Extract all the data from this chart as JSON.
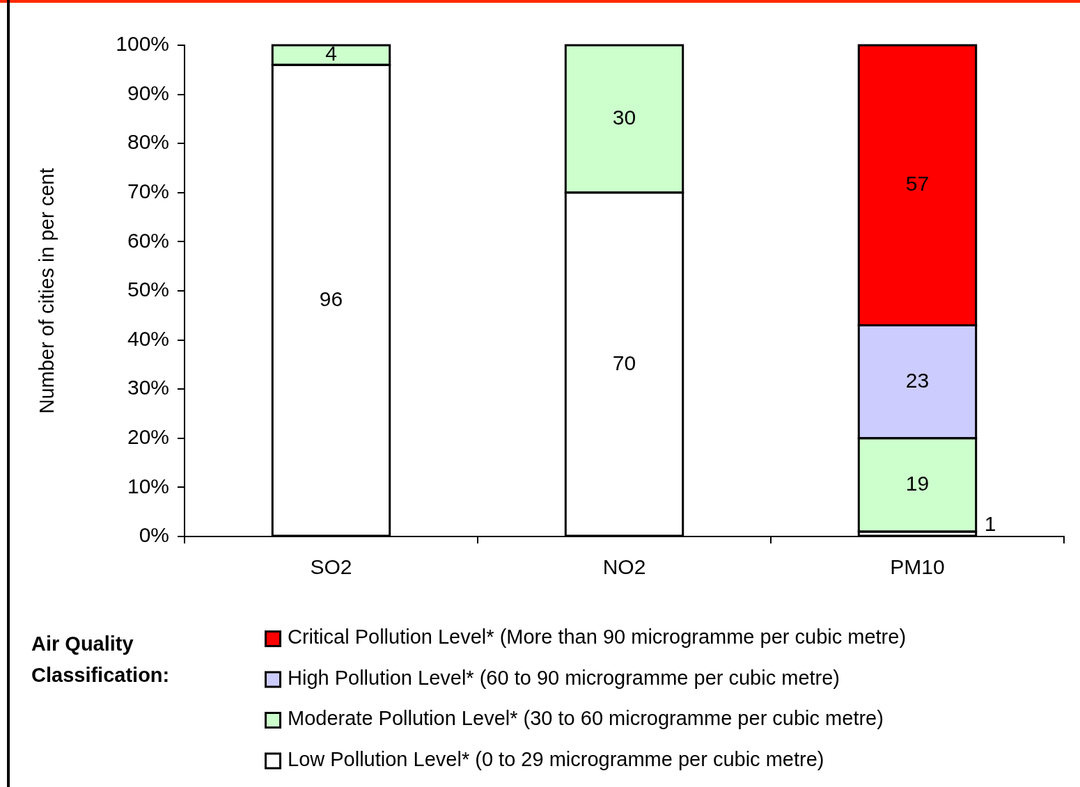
{
  "chart_data": {
    "type": "bar",
    "ylabel": "Number of cities in per cent",
    "categories": [
      "SO2",
      "NO2",
      "PM10"
    ],
    "series": [
      {
        "name": "Low Pollution Level* (0 to 29 microgramme per cubic metre)",
        "color": "#ffffff",
        "values": [
          96,
          70,
          1
        ]
      },
      {
        "name": "Moderate Pollution Level* (30 to 60 microgramme per cubic metre)",
        "color": "#ccffcc",
        "values": [
          4,
          30,
          19
        ]
      },
      {
        "name": "High Pollution Level* (60 to 90 microgramme per cubic metre)",
        "color": "#ccccff",
        "values": [
          null,
          null,
          23
        ]
      },
      {
        "name": "Critical Pollution Level* (More than 90 microgramme per cubic metre)",
        "color": "#ff0000",
        "values": [
          null,
          null,
          57
        ]
      }
    ],
    "stacked": true,
    "ylim": [
      0,
      100
    ],
    "yticks": [
      {
        "value": 0,
        "label": "0%"
      },
      {
        "value": 10,
        "label": "10%"
      },
      {
        "value": 20,
        "label": "20%"
      },
      {
        "value": 30,
        "label": "30%"
      },
      {
        "value": 40,
        "label": "40%"
      },
      {
        "value": 50,
        "label": "50%"
      },
      {
        "value": 60,
        "label": "60%"
      },
      {
        "value": 70,
        "label": "70%"
      },
      {
        "value": 80,
        "label": "80%"
      },
      {
        "value": 90,
        "label": "90%"
      },
      {
        "value": 100,
        "label": "100%"
      }
    ],
    "data_labels": true,
    "legend": "bottom",
    "legend_title": "Air Quality Classification:"
  }
}
